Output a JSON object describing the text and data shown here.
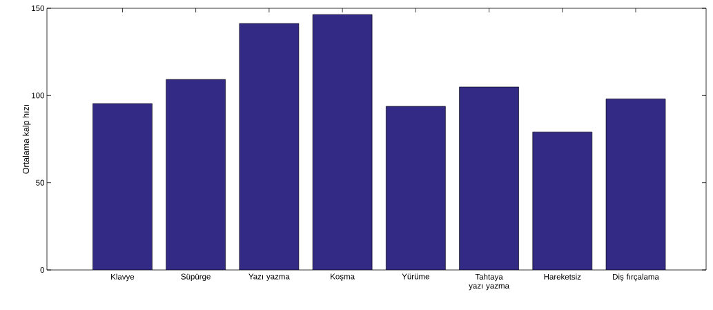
{
  "chart_data": {
    "type": "bar",
    "ylabel": "Ortalama kalp hızı",
    "categories": [
      "Klavye",
      "Süpürge",
      "Yazı yazma",
      "Koşma",
      "Yürüme",
      "Tahtaya yazı yazma",
      "Hareketsiz",
      "Diş fırçalama"
    ],
    "values": [
      95.4,
      109.2,
      141.3,
      146.4,
      93.8,
      104.9,
      79.1,
      98.1
    ],
    "color": "#332a85",
    "ylim": [
      0,
      150
    ],
    "yticks": [
      0,
      50,
      100,
      150
    ],
    "grid": false
  }
}
